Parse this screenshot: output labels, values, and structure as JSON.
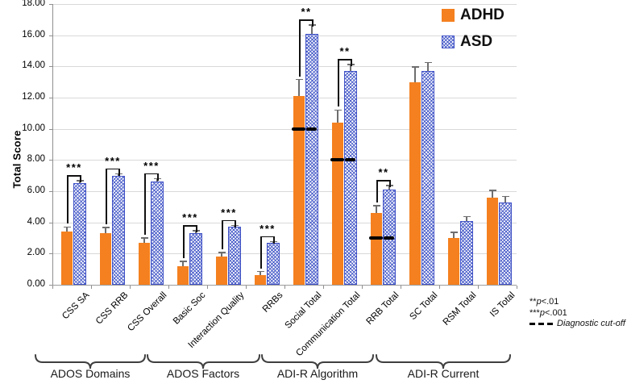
{
  "figure": {
    "y_axis_title": "Total Score",
    "legend": {
      "items": [
        {
          "label": "ADHD",
          "style": "solid-orange",
          "color": "#F4801F"
        },
        {
          "label": "ASD",
          "style": "hatched-blue",
          "color": "#4A5CC8"
        }
      ]
    },
    "notes": {
      "line1": {
        "stars": "**",
        "p": "p",
        "rest": "<.01"
      },
      "line2": {
        "stars": "***",
        "p": "p",
        "rest": "<.001"
      },
      "cutoff_label": "Diagnostic cut-off"
    },
    "colors": {
      "adhd_orange": "#F4801F",
      "asd_blue": "#4A5CC8",
      "gridline": "#D9D9D9",
      "axis": "#8F8F8F",
      "error_bar": "#6E6E6E",
      "cutoff_dash": "#000000"
    }
  },
  "chart_data": {
    "type": "bar",
    "title": "",
    "xlabel": "",
    "ylabel": "Total Score",
    "ylim": [
      0,
      18
    ],
    "ytick_step": 2,
    "grid": true,
    "legend_position": "top-right",
    "categories": [
      "CSS SA",
      "CSS RRB",
      "CSS Overall",
      "Basic Soc",
      "Interaction Quality",
      "RRBs",
      "Social Total",
      "Communication Total",
      "RRB Total",
      "SC Total",
      "RSM Total",
      "IS Total"
    ],
    "groups": [
      {
        "label": "ADOS Domains",
        "category_indices": [
          0,
          2
        ]
      },
      {
        "label": "ADOS Factors",
        "category_indices": [
          3,
          5
        ]
      },
      {
        "label": "ADI-R Algorithm",
        "category_indices": [
          6,
          8
        ]
      },
      {
        "label": "ADI-R Current",
        "category_indices": [
          9,
          11
        ]
      }
    ],
    "series": [
      {
        "name": "ADHD",
        "values": [
          3.4,
          3.3,
          2.7,
          1.2,
          1.8,
          0.6,
          12.1,
          10.4,
          4.6,
          13.0,
          3.0,
          5.6
        ],
        "error_bars": [
          0.35,
          0.4,
          0.35,
          0.35,
          0.3,
          0.3,
          1.1,
          0.85,
          0.5,
          1.0,
          0.4,
          0.5
        ]
      },
      {
        "name": "ASD",
        "values": [
          6.5,
          7.0,
          6.6,
          3.3,
          3.7,
          2.7,
          16.1,
          13.7,
          6.1,
          13.7,
          4.1,
          5.3
        ],
        "error_bars": [
          0.2,
          0.15,
          0.25,
          0.2,
          0.15,
          0.1,
          0.6,
          0.45,
          0.3,
          0.6,
          0.3,
          0.4
        ]
      }
    ],
    "significance_markers": [
      {
        "category": "CSS SA",
        "stars": "***"
      },
      {
        "category": "CSS RRB",
        "stars": "***"
      },
      {
        "category": "CSS Overall",
        "stars": "***"
      },
      {
        "category": "Basic Soc",
        "stars": "***"
      },
      {
        "category": "Interaction Quality",
        "stars": "***"
      },
      {
        "category": "RRBs",
        "stars": "***"
      },
      {
        "category": "Social Total",
        "stars": "**"
      },
      {
        "category": "Communication Total",
        "stars": "**"
      },
      {
        "category": "RRB Total",
        "stars": "**"
      }
    ],
    "diagnostic_cutoffs": [
      {
        "category": "Social Total",
        "value": 10
      },
      {
        "category": "Communication Total",
        "value": 8
      },
      {
        "category": "RRB Total",
        "value": 3
      }
    ]
  }
}
